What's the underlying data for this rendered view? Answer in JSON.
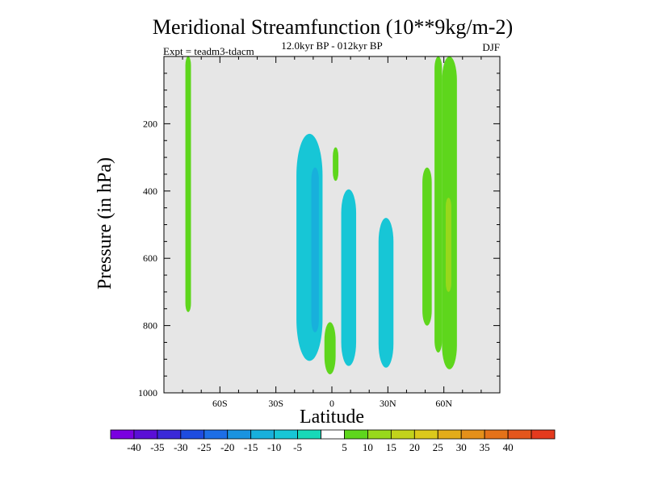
{
  "chart_data": {
    "type": "contour",
    "title": "Meridional Streamfunction (10**9kg/m-2)",
    "subtitle_center": "12.0kyr BP - 012kyr BP",
    "subtitle_left": "Expt = teadm3-tdacm",
    "subtitle_right": "DJF",
    "xlabel": "Latitude",
    "ylabel": "Pressure (in hPa)",
    "xlim": [
      -90,
      90
    ],
    "ylim": [
      0,
      1000
    ],
    "y_inverted": true,
    "x_ticks": [
      {
        "value": -60,
        "label": "60S"
      },
      {
        "value": -30,
        "label": "30S"
      },
      {
        "value": 0,
        "label": "0"
      },
      {
        "value": 30,
        "label": "30N"
      },
      {
        "value": 60,
        "label": "60N"
      }
    ],
    "y_ticks": [
      {
        "value": 200,
        "label": "200"
      },
      {
        "value": 400,
        "label": "400"
      },
      {
        "value": 600,
        "label": "600"
      },
      {
        "value": 800,
        "label": "800"
      },
      {
        "value": 1000,
        "label": "1000"
      }
    ],
    "background_color": "#e6e6e6",
    "contour_regions": [
      {
        "name": "sh-highlat-positive",
        "level": 5,
        "lat_center": -77,
        "lat_halfwidth": 1.5,
        "p_top": 0,
        "p_bottom": 760
      },
      {
        "name": "sh-subtropical-negative",
        "level": -5,
        "lat_center": -12,
        "lat_halfwidth": 7,
        "p_top": 230,
        "p_bottom": 905
      },
      {
        "name": "sh-subtropical-negative-inner",
        "level": -10,
        "lat_center": -9,
        "lat_halfwidth": 2,
        "p_top": 330,
        "p_bottom": 820
      },
      {
        "name": "eq-upper-positive",
        "level": 5,
        "lat_center": 2,
        "lat_halfwidth": 1.5,
        "p_top": 270,
        "p_bottom": 370
      },
      {
        "name": "eq-lower-positive",
        "level": 5,
        "lat_center": -1,
        "lat_halfwidth": 3,
        "p_top": 790,
        "p_bottom": 945
      },
      {
        "name": "nh-tropical-negative-1",
        "level": -5,
        "lat_center": 9,
        "lat_halfwidth": 4,
        "p_top": 395,
        "p_bottom": 920
      },
      {
        "name": "nh-tropical-negative-2",
        "level": -5,
        "lat_center": 29,
        "lat_halfwidth": 4,
        "p_top": 480,
        "p_bottom": 925
      },
      {
        "name": "nh-midlat-positive-1",
        "level": 5,
        "lat_center": 51,
        "lat_halfwidth": 2.5,
        "p_top": 330,
        "p_bottom": 800
      },
      {
        "name": "nh-midlat-positive-2",
        "level": 5,
        "lat_center": 57,
        "lat_halfwidth": 2,
        "p_top": 0,
        "p_bottom": 880
      },
      {
        "name": "nh-highlat-positive",
        "level": 5,
        "lat_center": 63,
        "lat_halfwidth": 4,
        "p_top": 0,
        "p_bottom": 930
      },
      {
        "name": "nh-highlat-positive-inner",
        "level": 10,
        "lat_center": 62.5,
        "lat_halfwidth": 1.5,
        "p_top": 420,
        "p_bottom": 700
      }
    ],
    "colorbar": {
      "colors": [
        "#7a00e0",
        "#5a0fd6",
        "#3a28d8",
        "#1e4ce0",
        "#1d6ee6",
        "#1a93e0",
        "#18b0dc",
        "#17c6d6",
        "#17d9b8",
        "#ffffff",
        "#5ed61c",
        "#98d81b",
        "#c2d21b",
        "#dcc91b",
        "#e3ac19",
        "#e59019",
        "#e57219",
        "#e4561c",
        "#e43a1e"
      ],
      "labels": [
        "-40",
        "-35",
        "-30",
        "-25",
        "-20",
        "-15",
        "-10",
        "-5",
        "5",
        "10",
        "15",
        "20",
        "25",
        "30",
        "35",
        "40"
      ],
      "level_values": [
        -40,
        -35,
        -30,
        -25,
        -20,
        -15,
        -10,
        -5,
        5,
        10,
        15,
        20,
        25,
        30,
        35,
        40
      ]
    }
  }
}
